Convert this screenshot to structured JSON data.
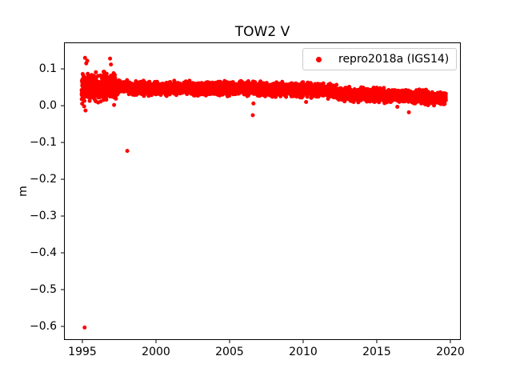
{
  "chart_data": {
    "type": "scatter",
    "title": "TOW2 V",
    "xlabel": "",
    "ylabel": "m",
    "xlim": [
      1993.75,
      2020.71
    ],
    "ylim": [
      -0.637,
      0.172
    ],
    "xticks": [
      1995,
      2000,
      2005,
      2010,
      2015,
      2020
    ],
    "yticks": [
      0.1,
      0.0,
      -0.1,
      -0.2,
      -0.3,
      -0.4,
      -0.5,
      -0.6
    ],
    "grid": false,
    "axis_color": "#000000",
    "background": "#ffffff",
    "legend": {
      "position": "upper right",
      "entries": [
        {
          "label": "repro2018a (IGS14)",
          "color": "#ff0000",
          "marker": "dot"
        }
      ]
    },
    "series": [
      {
        "name": "repro2018a (IGS14)",
        "color": "#ff0000",
        "marker": "dot",
        "marker_radius_px": 2.5,
        "band": {
          "x_start": 1994.95,
          "x_end": 2019.7,
          "points_per_year": 185,
          "early_until": 1997.3,
          "early_points_per_year": 260,
          "early_sigma": 0.016,
          "sigma": 0.008,
          "clip_sigma": 2.6,
          "seed": 42,
          "trend": [
            [
              1994.95,
              0.047
            ],
            [
              1996.2,
              0.05
            ],
            [
              1997.1,
              0.052
            ],
            [
              1998.5,
              0.047
            ],
            [
              2002.0,
              0.047
            ],
            [
              2006.0,
              0.046
            ],
            [
              2010.0,
              0.043
            ],
            [
              2011.8,
              0.039
            ],
            [
              2013.2,
              0.03
            ],
            [
              2016.0,
              0.027
            ],
            [
              2018.0,
              0.023
            ],
            [
              2019.7,
              0.02
            ]
          ]
        },
        "outliers": [
          [
            1995.15,
            -0.603
          ],
          [
            1995.18,
            0.13
          ],
          [
            1995.26,
            0.115
          ],
          [
            1995.33,
            0.122
          ],
          [
            1996.88,
            0.128
          ],
          [
            1996.94,
            0.112
          ],
          [
            1995.08,
            0.015
          ],
          [
            1995.12,
            -0.002
          ],
          [
            1995.21,
            -0.013
          ],
          [
            1997.15,
            0.002
          ],
          [
            1998.05,
            -0.123
          ],
          [
            2006.58,
            -0.026
          ],
          [
            2006.62,
            0.006
          ],
          [
            2010.2,
            0.01
          ],
          [
            2016.4,
            -0.003
          ],
          [
            2017.18,
            -0.018
          ]
        ]
      }
    ]
  }
}
